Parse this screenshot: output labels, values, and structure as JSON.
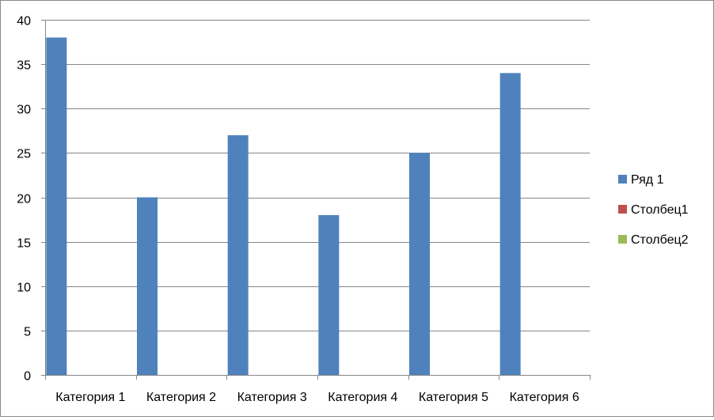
{
  "chart_data": {
    "type": "bar",
    "categories": [
      "Категория 1",
      "Категория 2",
      "Категория 3",
      "Категория 4",
      "Категория 5",
      "Категория 6"
    ],
    "series": [
      {
        "name": "Ряд 1",
        "color": "#4f81bd",
        "values": [
          38,
          20,
          27,
          18,
          25,
          34
        ]
      },
      {
        "name": "Столбец1",
        "color": "#c0504d",
        "values": [
          null,
          null,
          null,
          null,
          null,
          null
        ]
      },
      {
        "name": "Столбец2",
        "color": "#9bbb59",
        "values": [
          null,
          null,
          null,
          null,
          null,
          null
        ]
      }
    ],
    "title": "",
    "xlabel": "",
    "ylabel": "",
    "ylim": [
      0,
      40
    ],
    "yticks": [
      "0",
      "5",
      "10",
      "15",
      "20",
      "25",
      "30",
      "35",
      "40"
    ],
    "grid": true,
    "legend": "right"
  }
}
